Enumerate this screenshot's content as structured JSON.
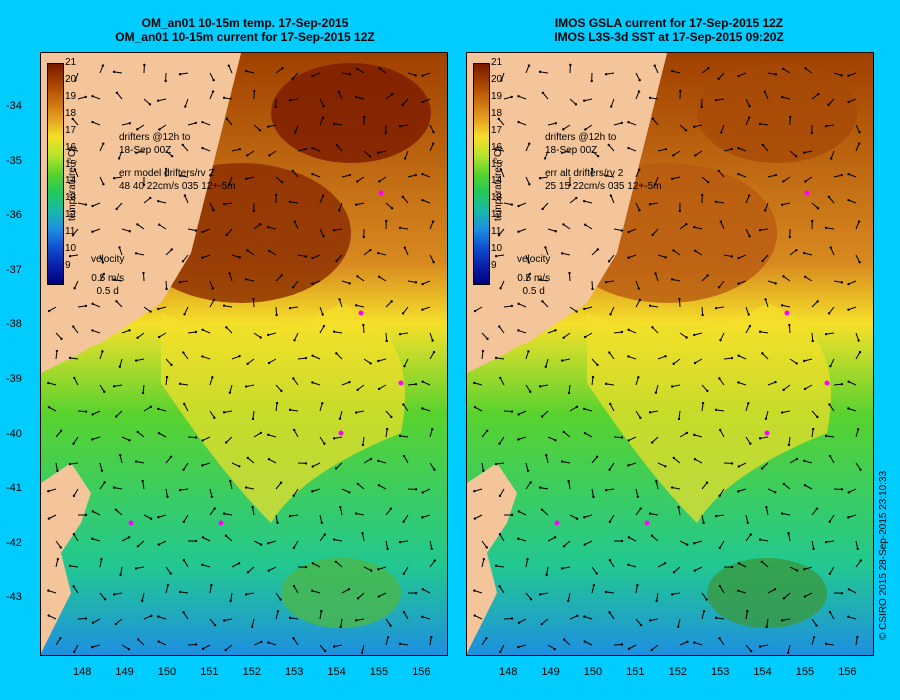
{
  "left_panel": {
    "title_line1": "OM_an01 10-15m temp. 17-Sep-2015",
    "title_line2": "OM_an01 10-15m current for 17-Sep-2015 12Z",
    "legend_line1": "drifters @12h to",
    "legend_line2": "18-Sep 00Z",
    "legend_line3": "err model drifters/rv 2",
    "legend_line4": "48 40 22cm/s 035 12+-5m"
  },
  "right_panel": {
    "title_line1": "IMOS GSLA current for 17-Sep-2015 12Z",
    "title_line2": "IMOS L3S-3d SST at 17-Sep-2015 09:20Z",
    "legend_line1": "drifters @12h to",
    "legend_line2": "18-Sep 00Z",
    "legend_line3": "err alt drifters/rv 2",
    "legend_line4": "25 15 22cm/s 035 12+-5m"
  },
  "velocity_key": {
    "label": "velocity",
    "speed": "0.5 m/s",
    "duration": "0.5 d"
  },
  "colorbar": {
    "title": "temperature (°C)",
    "ticks": [
      "21",
      "20",
      "19",
      "18",
      "17",
      "16",
      "15",
      "14",
      "13",
      "12",
      "11",
      "10",
      "9"
    ],
    "colors": [
      "#7a1a00",
      "#a34000",
      "#c86e10",
      "#e3a020",
      "#f5e02a",
      "#b6e42a",
      "#58d22e",
      "#22c85a",
      "#18b8a8",
      "#1e90e0",
      "#1050d0",
      "#0a20a8",
      "#000080"
    ]
  },
  "lat_labels": [
    "-34",
    "-35",
    "-36",
    "-37",
    "-38",
    "-39",
    "-40",
    "-41",
    "-42",
    "-43"
  ],
  "lon_labels": [
    "148",
    "149",
    "150",
    "151",
    "152",
    "153",
    "154",
    "155",
    "156"
  ],
  "copyright": "© CSIRO 2015  28-Sep-2015 23:10:33",
  "colors": {
    "background": "#00ccff",
    "land": "#f4c49a",
    "drifter": "#ff00ff",
    "missing": "#b8a898"
  }
}
